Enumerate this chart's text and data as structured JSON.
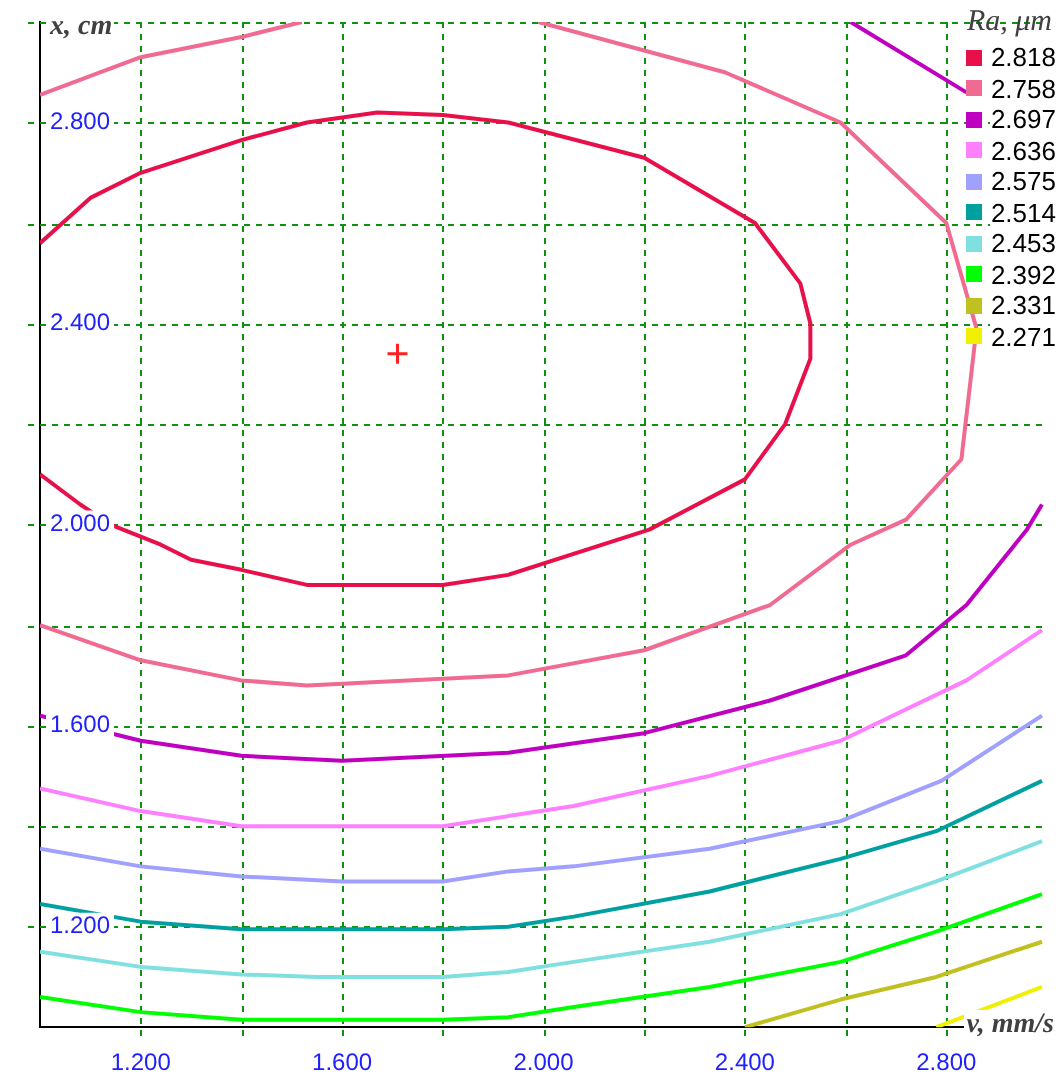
{
  "chart_data": {
    "type": "line",
    "xlabel": "v, mm/s",
    "ylabel": "x, cm",
    "legend_title": "Ra, μm",
    "legend": "top right",
    "grid": true,
    "marker": "none",
    "xlim": [
      1.0,
      3.0
    ],
    "ylim": [
      1.0,
      3.0
    ],
    "xticks": [
      {
        "value": 1.2,
        "label": "1.200"
      },
      {
        "value": 1.4,
        "label": null
      },
      {
        "value": 1.6,
        "label": "1.600"
      },
      {
        "value": 1.8,
        "label": null
      },
      {
        "value": 2.0,
        "label": "2.000"
      },
      {
        "value": 2.2,
        "label": null
      },
      {
        "value": 2.4,
        "label": "2.400"
      },
      {
        "value": 2.6,
        "label": null
      },
      {
        "value": 2.8,
        "label": "2.800"
      }
    ],
    "yticks": [
      {
        "value": 1.2,
        "label": "1.200"
      },
      {
        "value": 1.4,
        "label": null
      },
      {
        "value": 1.6,
        "label": "1.600"
      },
      {
        "value": 1.8,
        "label": null
      },
      {
        "value": 2.0,
        "label": "2.000"
      },
      {
        "value": 2.2,
        "label": null
      },
      {
        "value": 2.4,
        "label": "2.400"
      },
      {
        "value": 2.6,
        "label": null
      },
      {
        "value": 2.8,
        "label": "2.800"
      },
      {
        "value": 3.0,
        "label": null
      }
    ],
    "series": [
      {
        "name": "2.818",
        "color": "#e8104a",
        "x": [
          1.0,
          1.1,
          1.2,
          1.4,
          1.53,
          1.67,
          1.8,
          1.93,
          2.2,
          2.42,
          2.51,
          2.53,
          2.53,
          2.48,
          2.4,
          2.21,
          1.93,
          1.8,
          1.53,
          1.4,
          1.3,
          1.24,
          1.14,
          1.08,
          1.0
        ],
        "values": [
          2.56,
          2.65,
          2.7,
          2.765,
          2.8,
          2.82,
          2.815,
          2.8,
          2.73,
          2.6,
          2.48,
          2.4,
          2.33,
          2.2,
          2.09,
          1.99,
          1.9,
          1.88,
          1.88,
          1.91,
          1.93,
          1.96,
          2.0,
          2.04,
          2.1
        ]
      },
      {
        "name": "2.758",
        "color": "#f06a92",
        "x": [
          1.0,
          1.2,
          1.4,
          1.52,
          null,
          1.99,
          2.36,
          2.59,
          2.8,
          2.86,
          2.83,
          2.72,
          2.61,
          2.45,
          2.2,
          1.93,
          1.53,
          1.4,
          1.2,
          1.0
        ],
        "values": [
          2.855,
          2.93,
          2.97,
          3.0,
          null,
          3.0,
          2.9,
          2.8,
          2.6,
          2.39,
          2.13,
          2.01,
          1.96,
          1.84,
          1.75,
          1.7,
          1.68,
          1.69,
          1.73,
          1.8
        ]
      },
      {
        "name": "2.697",
        "color": "#c000c0",
        "x": [
          2.61,
          2.84,
          null,
          2.99,
          2.96,
          2.84,
          2.72,
          2.45,
          2.2,
          1.93,
          1.6,
          1.4,
          1.2,
          1.0
        ],
        "values": [
          3.0,
          2.86,
          null,
          2.04,
          1.99,
          1.84,
          1.74,
          1.65,
          1.585,
          1.546,
          1.53,
          1.54,
          1.57,
          1.62
        ]
      },
      {
        "name": "2.636",
        "color": "#ff80ff",
        "x": [
          2.99,
          2.84,
          2.59,
          2.33,
          2.06,
          1.93,
          1.8,
          1.6,
          1.4,
          1.2,
          1.0
        ],
        "values": [
          1.79,
          1.69,
          1.57,
          1.5,
          1.44,
          1.42,
          1.4,
          1.4,
          1.4,
          1.43,
          1.475
        ]
      },
      {
        "name": "2.575",
        "color": "#a0a0ff",
        "x": [
          2.99,
          2.79,
          2.59,
          2.33,
          2.06,
          1.93,
          1.8,
          1.6,
          1.4,
          1.2,
          1.0
        ],
        "values": [
          1.62,
          1.49,
          1.41,
          1.355,
          1.32,
          1.31,
          1.29,
          1.29,
          1.3,
          1.32,
          1.355
        ]
      },
      {
        "name": "2.514",
        "color": "#00a0a0",
        "x": [
          2.99,
          2.78,
          2.59,
          2.33,
          2.06,
          1.93,
          1.8,
          1.6,
          1.4,
          1.2,
          1.0
        ],
        "values": [
          1.49,
          1.39,
          1.335,
          1.27,
          1.22,
          1.2,
          1.195,
          1.195,
          1.195,
          1.21,
          1.245
        ]
      },
      {
        "name": "2.453",
        "color": "#80e0e0",
        "x": [
          2.99,
          2.78,
          2.59,
          2.33,
          2.06,
          1.93,
          1.8,
          1.55,
          1.4,
          1.2,
          1.0
        ],
        "values": [
          1.37,
          1.29,
          1.225,
          1.17,
          1.13,
          1.11,
          1.1,
          1.1,
          1.105,
          1.12,
          1.15
        ]
      },
      {
        "name": "2.392",
        "color": "#00ff00",
        "x": [
          2.99,
          2.78,
          2.59,
          2.33,
          2.06,
          1.93,
          1.8,
          1.6,
          1.4,
          1.2,
          1.0
        ],
        "values": [
          1.265,
          1.19,
          1.13,
          1.08,
          1.04,
          1.02,
          1.015,
          1.015,
          1.015,
          1.03,
          1.06
        ]
      },
      {
        "name": "2.331",
        "color": "#c0c020",
        "x": [
          2.99,
          2.78,
          2.59,
          2.4
        ],
        "values": [
          1.17,
          1.1,
          1.055,
          1.0
        ]
      },
      {
        "name": "2.271",
        "color": "#f0f000",
        "x": [
          2.78,
          2.99
        ],
        "values": [
          1.0,
          1.08
        ]
      },
      {
        "type": "scatter",
        "marker": "cross",
        "color": "#ff2020",
        "x": [
          1.71
        ],
        "values": [
          2.34
        ]
      }
    ]
  }
}
